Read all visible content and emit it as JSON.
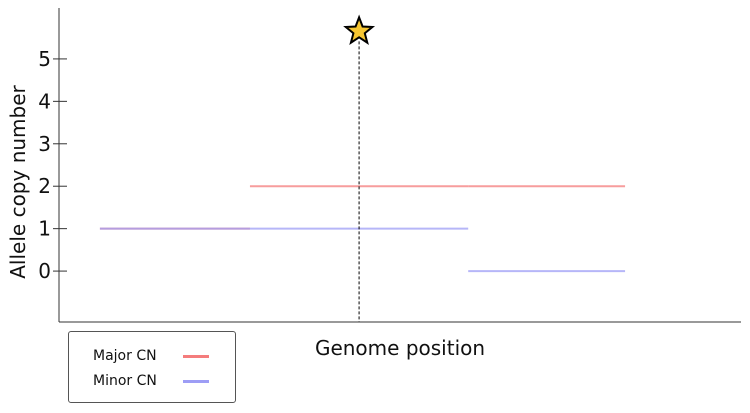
{
  "chart_data": {
    "type": "line",
    "xlabel": "Genome position",
    "ylabel": "Allele copy number",
    "ylim": [
      -1.2,
      6.2
    ],
    "xlim": [
      0,
      100
    ],
    "yticks": [
      "0",
      "1",
      "2",
      "3",
      "4",
      "5"
    ],
    "marker": {
      "label": "",
      "x": 44,
      "y": 5.65,
      "symbol": "star",
      "color": "#f6c632"
    },
    "series": [
      {
        "name": "Major CN",
        "color": "#f47c7c",
        "segments": [
          {
            "x0": 6,
            "x1": 28,
            "y": 1
          },
          {
            "x0": 28,
            "x1": 60,
            "y": 2
          },
          {
            "x0": 60,
            "x1": 83,
            "y": 2
          }
        ]
      },
      {
        "name": "Minor CN",
        "color": "#9d9df5",
        "segments": [
          {
            "x0": 6,
            "x1": 28,
            "y": 1
          },
          {
            "x0": 28,
            "x1": 60,
            "y": 1
          },
          {
            "x0": 60,
            "x1": 83,
            "y": 0
          }
        ]
      }
    ],
    "legend": {
      "position": "bottom-left"
    },
    "grid": false
  }
}
